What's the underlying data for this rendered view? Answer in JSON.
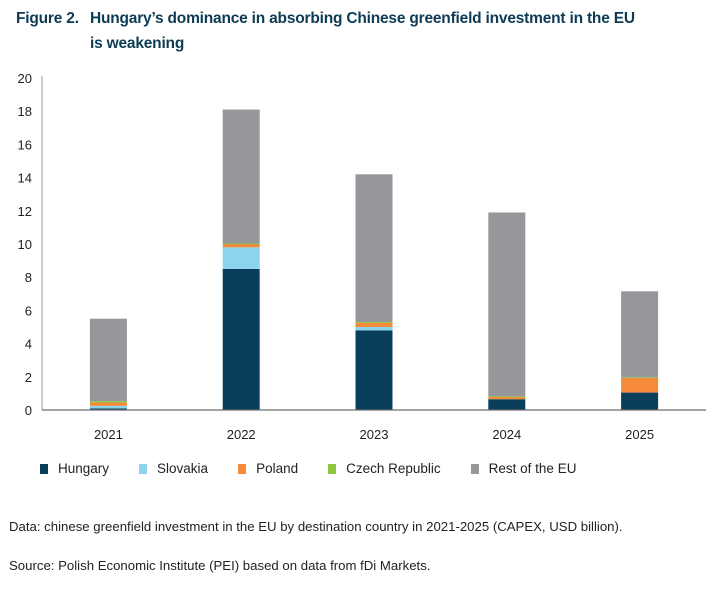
{
  "title": {
    "figure": "Figure 2.",
    "line1": "Hungary’s dominance in absorbing Chinese greenfield investment in the EU",
    "line2": "is weakening"
  },
  "chart_data": {
    "type": "bar",
    "stacked": true,
    "categories": [
      "2021",
      "2022",
      "2023",
      "2024",
      "2025"
    ],
    "series": [
      {
        "name": "Hungary",
        "color": "#0a3f5c",
        "values": [
          0.1,
          8.5,
          4.8,
          0.65,
          1.05
        ]
      },
      {
        "name": "Slovakia",
        "color": "#8ad4ee",
        "values": [
          0.15,
          1.3,
          0.2,
          0,
          0
        ]
      },
      {
        "name": "Poland",
        "color": "#f58a3a",
        "values": [
          0.2,
          0.2,
          0.25,
          0.15,
          0.9
        ]
      },
      {
        "name": "Czech Republic",
        "color": "#8dc63f",
        "values": [
          0.08,
          0.03,
          0.05,
          0.02,
          0.02
        ]
      },
      {
        "name": "Rest of the EU",
        "color": "#96979b",
        "values": [
          4.97,
          8.07,
          8.9,
          11.08,
          5.18
        ]
      }
    ],
    "yticks": [
      "0",
      "2",
      "4",
      "6",
      "8",
      "10",
      "12",
      "14",
      "16",
      "18",
      "20"
    ],
    "ylim": [
      0,
      20
    ],
    "legend_position": "bottom",
    "xlabel": "",
    "ylabel": ""
  },
  "notes": {
    "data": "Data: chinese greenfield investment in the EU by destination country in 2021-2025 (CAPEX, USD bil­lion).",
    "source": "Source: Polish Economic Institute (PEI) based on data from fDi Markets."
  }
}
